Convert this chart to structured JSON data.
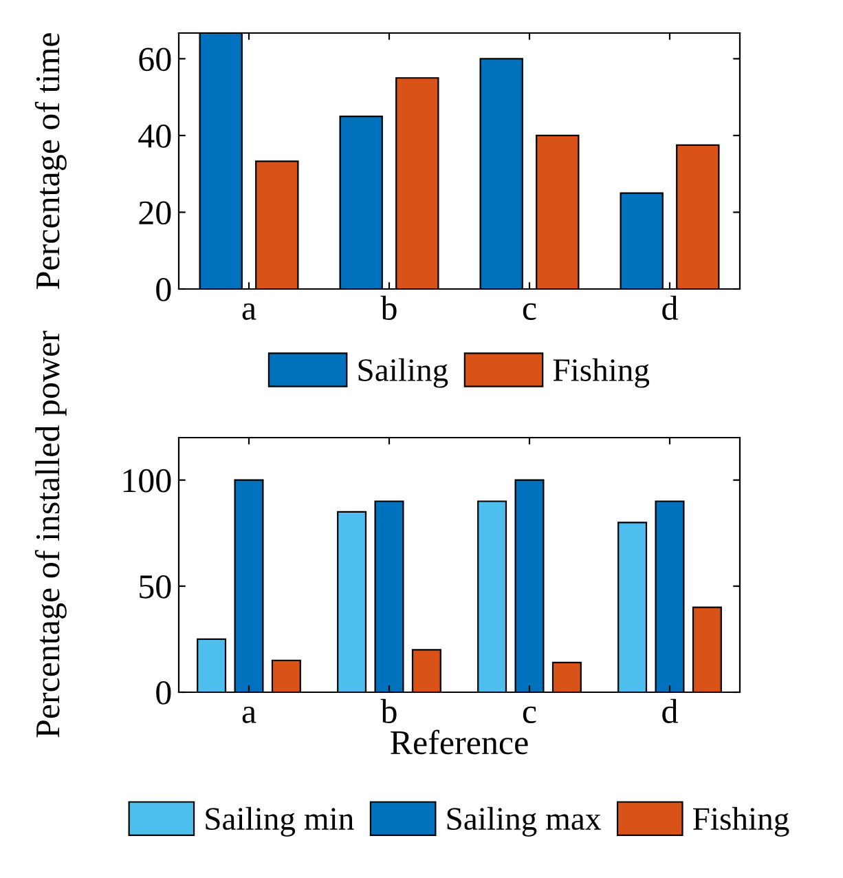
{
  "chart_data": [
    {
      "type": "bar",
      "categories": [
        "a",
        "b",
        "c",
        "d"
      ],
      "ylabel": "Percentage of time",
      "ylim": [
        0,
        66.7
      ],
      "yticks": [
        0,
        20,
        40,
        60
      ],
      "legend": "bottom",
      "grid": false,
      "series": [
        {
          "name": "Sailing",
          "color": "#0072bd",
          "values": [
            66.7,
            45,
            60,
            25
          ]
        },
        {
          "name": "Fishing",
          "color": "#d95319",
          "values": [
            33.3,
            55,
            40,
            37.5
          ]
        }
      ]
    },
    {
      "type": "bar",
      "categories": [
        "a",
        "b",
        "c",
        "d"
      ],
      "ylabel": "Percentage of installed power",
      "xlabel": "Reference",
      "ylim": [
        0,
        120
      ],
      "yticks": [
        0,
        50,
        100
      ],
      "legend": "bottom",
      "grid": false,
      "series": [
        {
          "name": "Sailing min",
          "color": "#4dbeee",
          "values": [
            25,
            85,
            90,
            80
          ]
        },
        {
          "name": "Sailing max",
          "color": "#0072bd",
          "values": [
            100,
            90,
            100,
            90
          ]
        },
        {
          "name": "Fishing",
          "color": "#d95319",
          "values": [
            15,
            20,
            14,
            40
          ]
        }
      ]
    }
  ]
}
